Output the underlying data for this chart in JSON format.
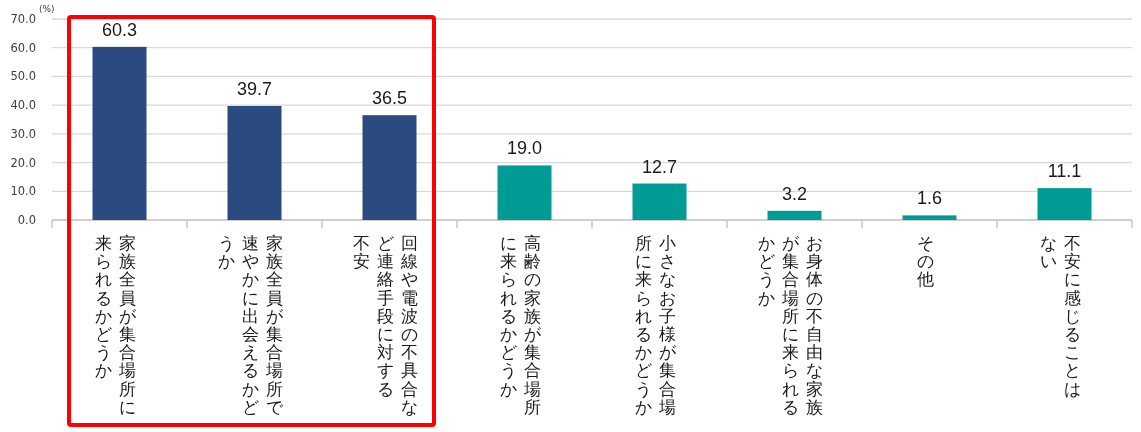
{
  "chart_data": {
    "type": "bar",
    "ylabel": "(%)",
    "categories": [
      "家族全員が集合場所に来られるかどうか",
      "家族全員が集合場所で速やかに出会えるかどうか",
      "回線や電波の不具合など連絡手段に対する不安",
      "高齢の家族が集合場所に来られるかどうか",
      "小さなお子様が集合場所に来られるかどうか",
      "お身体の不自由な家族が集合場所に来られるかどうか",
      "その他",
      "不安に感じることはない"
    ],
    "values": [
      60.3,
      39.7,
      36.5,
      19.0,
      12.7,
      3.2,
      1.6,
      11.1
    ],
    "colors": [
      "#2b4b80",
      "#2b4b80",
      "#2b4b80",
      "#009b95",
      "#009b95",
      "#009b95",
      "#009b95",
      "#009b95"
    ],
    "value_labels": [
      "60.3",
      "39.7",
      "36.5",
      "19.0",
      "12.7",
      "3.2",
      "1.6",
      "11.1"
    ],
    "ylim": [
      0,
      70
    ],
    "yticks": [
      {
        "value": 0,
        "label": "0.0"
      },
      {
        "value": 10,
        "label": "10.0"
      },
      {
        "value": 20,
        "label": "20.0"
      },
      {
        "value": 30,
        "label": "30.0"
      },
      {
        "value": 40,
        "label": "40.0"
      },
      {
        "value": 50,
        "label": "50.0"
      },
      {
        "value": 60,
        "label": "60.0"
      },
      {
        "value": 70,
        "label": "70.0"
      }
    ],
    "grid": "y"
  }
}
